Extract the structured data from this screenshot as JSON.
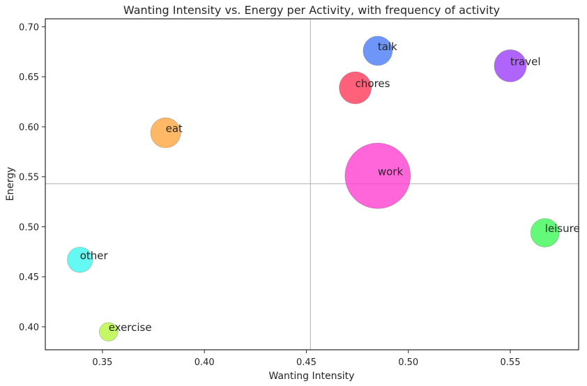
{
  "chart_data": {
    "type": "scatter",
    "title": "Wanting Intensity vs. Energy per Activity, with frequency of activity",
    "xlabel": "Wanting Intensity",
    "ylabel": "Energy",
    "xlim": [
      0.322,
      0.5835
    ],
    "ylim": [
      0.377,
      0.708
    ],
    "xticks": [
      "0.35",
      "0.40",
      "0.45",
      "0.50",
      "0.55"
    ],
    "yticks": [
      "0.40",
      "0.45",
      "0.50",
      "0.55",
      "0.60",
      "0.65",
      "0.70"
    ],
    "reference_lines": {
      "x": 0.452,
      "y": 0.543
    },
    "grid": false,
    "points": [
      {
        "label": "talk",
        "x": 0.485,
        "y": 0.676,
        "size": 20,
        "color": "#4a7cf7"
      },
      {
        "label": "travel",
        "x": 0.55,
        "y": 0.661,
        "size": 24,
        "color": "#9b3ff7"
      },
      {
        "label": "chores",
        "x": 0.474,
        "y": 0.639,
        "size": 24,
        "color": "#ff3a5a"
      },
      {
        "label": "eat",
        "x": 0.381,
        "y": 0.594,
        "size": 21,
        "color": "#ffa740"
      },
      {
        "label": "work",
        "x": 0.485,
        "y": 0.551,
        "size": 100,
        "color": "#ff40d0"
      },
      {
        "label": "leisure",
        "x": 0.567,
        "y": 0.494,
        "size": 19,
        "color": "#3ef757"
      },
      {
        "label": "other",
        "x": 0.339,
        "y": 0.467,
        "size": 15,
        "color": "#3ff7f0"
      },
      {
        "label": "exercise",
        "x": 0.353,
        "y": 0.395,
        "size": 8,
        "color": "#b5f73f"
      }
    ]
  }
}
